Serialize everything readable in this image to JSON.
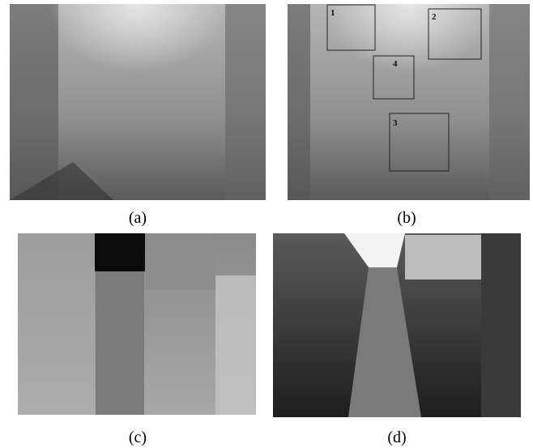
{
  "panels": [
    {
      "caption": "(a)"
    },
    {
      "caption": "(b)"
    },
    {
      "caption": "(c)"
    },
    {
      "caption": "(d)"
    }
  ],
  "regions": [
    {
      "label": "1"
    },
    {
      "label": "2"
    },
    {
      "label": "3"
    },
    {
      "label": "4"
    }
  ]
}
